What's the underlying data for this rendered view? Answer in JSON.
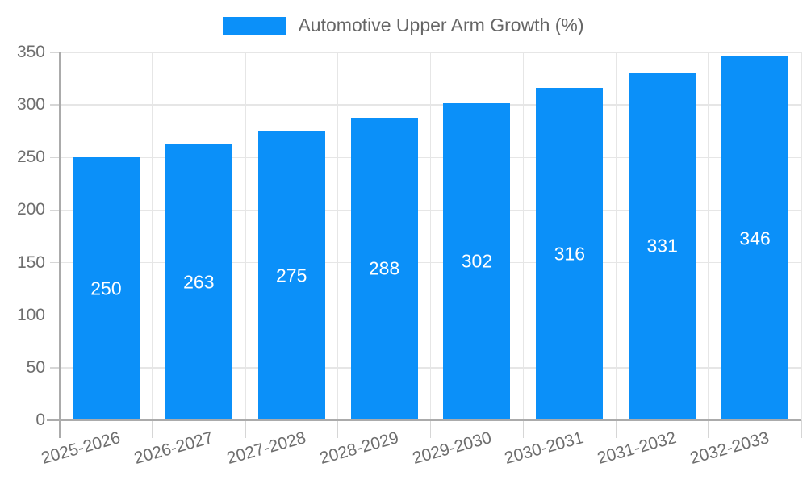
{
  "legend": {
    "label": "Automotive Upper Arm Growth (%)"
  },
  "chart_data": {
    "type": "bar",
    "title": "Automotive Upper Arm Growth (%)",
    "legend_label": "Automotive Upper Arm Growth (%)",
    "legend_position": "top",
    "categories": [
      "2025-2026",
      "2026-2027",
      "2027-2028",
      "2028-2029",
      "2029-2030",
      "2030-2031",
      "2031-2032",
      "2032-2033"
    ],
    "values": [
      250,
      263,
      275,
      288,
      302,
      316,
      331,
      346
    ],
    "value_labels": [
      "250",
      "263",
      "275",
      "288",
      "302",
      "316",
      "331",
      "346"
    ],
    "xlabel": "",
    "ylabel": "",
    "ylim": [
      0,
      350
    ],
    "yticks": [
      0,
      50,
      100,
      150,
      200,
      250,
      300,
      350
    ],
    "ytick_labels": [
      "0",
      "50",
      "100",
      "150",
      "200",
      "250",
      "300",
      "350"
    ],
    "grid": true,
    "x_label_rotation_deg": -15.5,
    "bar_color": "#0b90f9",
    "value_label_color": "#ffffff",
    "axis_text_color": "#6e6e6e",
    "legend_text_color": "#666666",
    "grid_color": "#e6e6e6",
    "tick_color": "#d6d6d6",
    "axis_line_color": "#ababab",
    "background_color": "#ffffff"
  }
}
